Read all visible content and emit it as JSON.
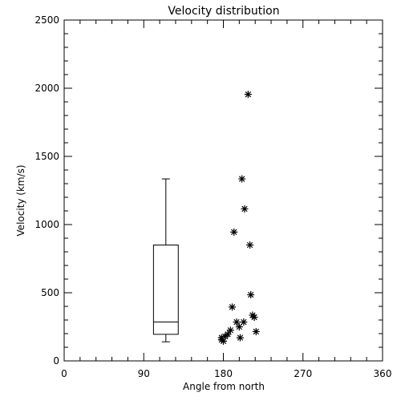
{
  "chart_data": {
    "type": "scatter",
    "title": "Velocity distribution",
    "xlabel": "Angle from north",
    "ylabel": "Velocity (km/s)",
    "xlim": [
      0,
      360
    ],
    "ylim": [
      0,
      2500
    ],
    "xticks": [
      0,
      90,
      180,
      270,
      360
    ],
    "yticks": [
      0,
      500,
      1000,
      1500,
      2000,
      2500
    ],
    "grid": false,
    "marker": "asterisk",
    "points": [
      {
        "x": 208,
        "y": 1955
      },
      {
        "x": 201,
        "y": 1335
      },
      {
        "x": 204,
        "y": 1115
      },
      {
        "x": 192,
        "y": 945
      },
      {
        "x": 210,
        "y": 850
      },
      {
        "x": 211,
        "y": 485
      },
      {
        "x": 190,
        "y": 395
      },
      {
        "x": 213,
        "y": 335
      },
      {
        "x": 215,
        "y": 320
      },
      {
        "x": 195,
        "y": 285
      },
      {
        "x": 203,
        "y": 285
      },
      {
        "x": 198,
        "y": 250
      },
      {
        "x": 217,
        "y": 215
      },
      {
        "x": 188,
        "y": 225
      },
      {
        "x": 185,
        "y": 195
      },
      {
        "x": 182,
        "y": 180
      },
      {
        "x": 178,
        "y": 170
      },
      {
        "x": 199,
        "y": 170
      },
      {
        "x": 178,
        "y": 155
      },
      {
        "x": 180,
        "y": 145
      }
    ],
    "boxplot": {
      "x": 115,
      "halfwidth": 14,
      "whisker_low": 140,
      "q1": 195,
      "median": 285,
      "q3": 850,
      "whisker_high": 1335
    }
  }
}
